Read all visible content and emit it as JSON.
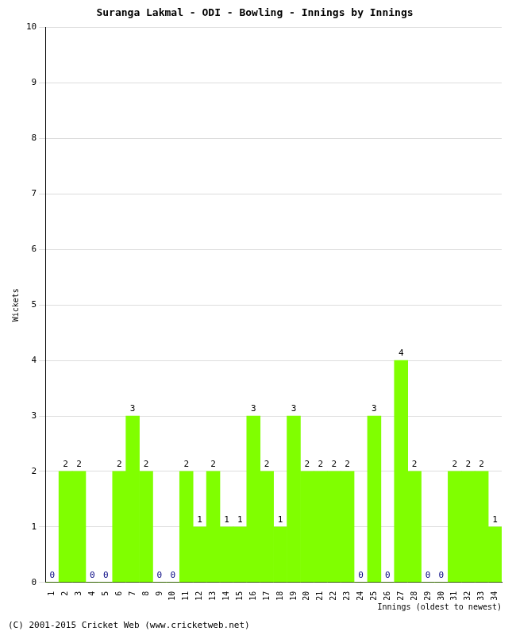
{
  "chart_data": {
    "type": "bar",
    "title": "Suranga Lakmal - ODI - Bowling - Innings by Innings",
    "x_label": "Innings (oldest to newest)",
    "y_label": "Wickets",
    "footer": "(C) 2001-2015 Cricket Web (www.cricketweb.net)",
    "categories": [
      "1",
      "2",
      "3",
      "4",
      "5",
      "6",
      "7",
      "8",
      "9",
      "10",
      "11",
      "12",
      "13",
      "14",
      "15",
      "16",
      "17",
      "18",
      "19",
      "20",
      "21",
      "22",
      "23",
      "24",
      "25",
      "26",
      "27",
      "28",
      "29",
      "30",
      "31",
      "32",
      "33",
      "34"
    ],
    "values": [
      0,
      2,
      2,
      0,
      0,
      2,
      3,
      2,
      0,
      0,
      2,
      1,
      2,
      1,
      1,
      3,
      2,
      1,
      3,
      2,
      2,
      2,
      2,
      0,
      3,
      0,
      4,
      2,
      0,
      0,
      2,
      2,
      2,
      1
    ],
    "color": "#80ff00",
    "ylim": [
      0,
      10
    ],
    "yticks": [
      0,
      1,
      2,
      3,
      4,
      5,
      6,
      7,
      8,
      9,
      10
    ],
    "grid": true,
    "data_labels": true
  }
}
